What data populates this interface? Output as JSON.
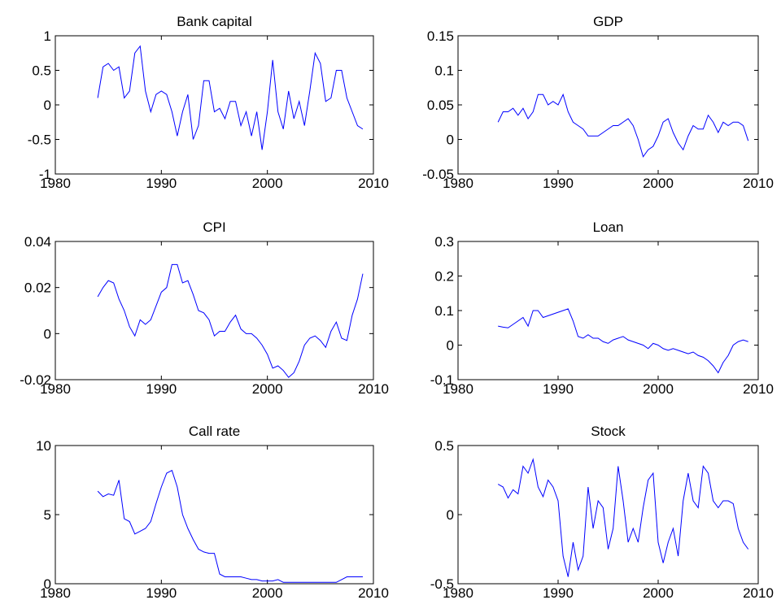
{
  "chart_data": [
    {
      "type": "line",
      "title": "Bank capital",
      "color": "#0000ff",
      "x": [
        1984,
        1984.5,
        1985,
        1985.5,
        1986,
        1986.5,
        1987,
        1987.5,
        1988,
        1988.5,
        1989,
        1989.5,
        1990,
        1990.5,
        1991,
        1991.5,
        1992,
        1992.5,
        1993,
        1993.5,
        1994,
        1994.5,
        1995,
        1995.5,
        1996,
        1996.5,
        1997,
        1997.5,
        1998,
        1998.5,
        1999,
        1999.5,
        2000,
        2000.5,
        2001,
        2001.5,
        2002,
        2002.5,
        2003,
        2003.5,
        2004,
        2004.5,
        2005,
        2005.5,
        2006,
        2006.5,
        2007,
        2007.5,
        2008,
        2008.5,
        2009
      ],
      "values": [
        0.1,
        0.55,
        0.6,
        0.5,
        0.55,
        0.1,
        0.2,
        0.75,
        0.85,
        0.2,
        -0.1,
        0.15,
        0.2,
        0.15,
        -0.1,
        -0.45,
        -0.1,
        0.15,
        -0.5,
        -0.3,
        0.35,
        0.35,
        -0.1,
        -0.05,
        -0.2,
        0.05,
        0.05,
        -0.3,
        -0.1,
        -0.45,
        -0.1,
        -0.65,
        -0.1,
        0.65,
        -0.1,
        -0.35,
        0.2,
        -0.2,
        0.05,
        -0.3,
        0.2,
        0.75,
        0.6,
        0.05,
        0.1,
        0.5,
        0.5,
        0.1,
        -0.1,
        -0.3,
        -0.35
      ],
      "xlim": [
        1980,
        2010
      ],
      "xticks": [
        1980,
        1990,
        2000,
        2010
      ],
      "ylim": [
        -1,
        1
      ],
      "yticks": [
        -1,
        -0.5,
        0,
        0.5,
        1
      ]
    },
    {
      "type": "line",
      "title": "GDP",
      "color": "#0000ff",
      "x": [
        1984,
        1984.5,
        1985,
        1985.5,
        1986,
        1986.5,
        1987,
        1987.5,
        1988,
        1988.5,
        1989,
        1989.5,
        1990,
        1990.5,
        1991,
        1991.5,
        1992,
        1992.5,
        1993,
        1993.5,
        1994,
        1994.5,
        1995,
        1995.5,
        1996,
        1996.5,
        1997,
        1997.5,
        1998,
        1998.5,
        1999,
        1999.5,
        2000,
        2000.5,
        2001,
        2001.5,
        2002,
        2002.5,
        2003,
        2003.5,
        2004,
        2004.5,
        2005,
        2005.5,
        2006,
        2006.5,
        2007,
        2007.5,
        2008,
        2008.5,
        2009
      ],
      "values": [
        0.025,
        0.04,
        0.04,
        0.045,
        0.035,
        0.045,
        0.03,
        0.04,
        0.065,
        0.065,
        0.05,
        0.055,
        0.05,
        0.065,
        0.04,
        0.025,
        0.02,
        0.015,
        0.005,
        0.005,
        0.005,
        0.01,
        0.015,
        0.02,
        0.02,
        0.025,
        0.03,
        0.02,
        0,
        -0.025,
        -0.015,
        -0.01,
        0.005,
        0.025,
        0.03,
        0.01,
        -0.005,
        -0.015,
        0.005,
        0.02,
        0.015,
        0.015,
        0.035,
        0.025,
        0.01,
        0.025,
        0.02,
        0.025,
        0.025,
        0.02,
        -0.002
      ],
      "xlim": [
        1980,
        2010
      ],
      "xticks": [
        1980,
        1990,
        2000,
        2010
      ],
      "ylim": [
        -0.05,
        0.15
      ],
      "yticks": [
        -0.05,
        0,
        0.05,
        0.1,
        0.15
      ]
    },
    {
      "type": "line",
      "title": "CPI",
      "color": "#0000ff",
      "x": [
        1984,
        1984.5,
        1985,
        1985.5,
        1986,
        1986.5,
        1987,
        1987.5,
        1988,
        1988.5,
        1989,
        1989.5,
        1990,
        1990.5,
        1991,
        1991.5,
        1992,
        1992.5,
        1993,
        1993.5,
        1994,
        1994.5,
        1995,
        1995.5,
        1996,
        1996.5,
        1997,
        1997.5,
        1998,
        1998.5,
        1999,
        1999.5,
        2000,
        2000.5,
        2001,
        2001.5,
        2002,
        2002.5,
        2003,
        2003.5,
        2004,
        2004.5,
        2005,
        2005.5,
        2006,
        2006.5,
        2007,
        2007.5,
        2008,
        2008.5,
        2009
      ],
      "values": [
        0.016,
        0.02,
        0.023,
        0.022,
        0.015,
        0.01,
        0.003,
        -0.001,
        0.006,
        0.004,
        0.006,
        0.012,
        0.018,
        0.02,
        0.03,
        0.03,
        0.022,
        0.023,
        0.017,
        0.01,
        0.009,
        0.006,
        -0.001,
        0.001,
        0.001,
        0.005,
        0.008,
        0.002,
        0,
        0,
        -0.002,
        -0.005,
        -0.009,
        -0.015,
        -0.014,
        -0.016,
        -0.019,
        -0.017,
        -0.012,
        -0.005,
        -0.002,
        -0.001,
        -0.003,
        -0.006,
        0.001,
        0.005,
        -0.002,
        -0.003,
        0.008,
        0.015,
        0.026
      ],
      "xlim": [
        1980,
        2010
      ],
      "xticks": [
        1980,
        1990,
        2000,
        2010
      ],
      "ylim": [
        -0.02,
        0.04
      ],
      "yticks": [
        -0.02,
        0,
        0.02,
        0.04
      ]
    },
    {
      "type": "line",
      "title": "Loan",
      "color": "#0000ff",
      "x": [
        1984,
        1984.5,
        1985,
        1985.5,
        1986,
        1986.5,
        1987,
        1987.5,
        1988,
        1988.5,
        1989,
        1989.5,
        1990,
        1990.5,
        1991,
        1991.5,
        1992,
        1992.5,
        1993,
        1993.5,
        1994,
        1994.5,
        1995,
        1995.5,
        1996,
        1996.5,
        1997,
        1997.5,
        1998,
        1998.5,
        1999,
        1999.5,
        2000,
        2000.5,
        2001,
        2001.5,
        2002,
        2002.5,
        2003,
        2003.5,
        2004,
        2004.5,
        2005,
        2005.5,
        2006,
        2006.5,
        2007,
        2007.5,
        2008,
        2008.5,
        2009
      ],
      "values": [
        0.055,
        0.052,
        0.05,
        0.06,
        0.07,
        0.08,
        0.055,
        0.1,
        0.1,
        0.08,
        0.085,
        0.09,
        0.095,
        0.1,
        0.105,
        0.07,
        0.025,
        0.02,
        0.03,
        0.02,
        0.02,
        0.01,
        0.005,
        0.015,
        0.02,
        0.025,
        0.015,
        0.01,
        0.005,
        0,
        -0.01,
        0.005,
        0,
        -0.01,
        -0.015,
        -0.01,
        -0.015,
        -0.02,
        -0.025,
        -0.02,
        -0.03,
        -0.035,
        -0.045,
        -0.06,
        -0.08,
        -0.05,
        -0.03,
        0,
        0.01,
        0.015,
        0.01
      ],
      "xlim": [
        1980,
        2010
      ],
      "xticks": [
        1980,
        1990,
        2000,
        2010
      ],
      "ylim": [
        -0.1,
        0.3
      ],
      "yticks": [
        -0.1,
        0,
        0.1,
        0.2,
        0.3
      ]
    },
    {
      "type": "line",
      "title": "Call rate",
      "color": "#0000ff",
      "x": [
        1984,
        1984.5,
        1985,
        1985.5,
        1986,
        1986.5,
        1987,
        1987.5,
        1988,
        1988.5,
        1989,
        1989.5,
        1990,
        1990.5,
        1991,
        1991.5,
        1992,
        1992.5,
        1993,
        1993.5,
        1994,
        1994.5,
        1995,
        1995.5,
        1996,
        1996.5,
        1997,
        1997.5,
        1998,
        1998.5,
        1999,
        1999.5,
        2000,
        2000.5,
        2001,
        2001.5,
        2002,
        2002.5,
        2003,
        2003.5,
        2004,
        2004.5,
        2005,
        2005.5,
        2006,
        2006.5,
        2007,
        2007.5,
        2008,
        2008.5,
        2009
      ],
      "values": [
        6.7,
        6.3,
        6.5,
        6.4,
        7.5,
        4.7,
        4.5,
        3.6,
        3.8,
        4.0,
        4.5,
        5.8,
        7.0,
        8.0,
        8.2,
        7.0,
        5.0,
        4.0,
        3.2,
        2.5,
        2.3,
        2.2,
        2.2,
        0.7,
        0.5,
        0.5,
        0.5,
        0.5,
        0.4,
        0.3,
        0.3,
        0.2,
        0.2,
        0.2,
        0.3,
        0.1,
        0.1,
        0.1,
        0.1,
        0.1,
        0.1,
        0.1,
        0.1,
        0.1,
        0.1,
        0.1,
        0.3,
        0.5,
        0.5,
        0.5,
        0.5
      ],
      "xlim": [
        1980,
        2010
      ],
      "xticks": [
        1980,
        1990,
        2000,
        2010
      ],
      "ylim": [
        0,
        10
      ],
      "yticks": [
        0,
        5,
        10
      ]
    },
    {
      "type": "line",
      "title": "Stock",
      "color": "#0000ff",
      "x": [
        1984,
        1984.5,
        1985,
        1985.5,
        1986,
        1986.5,
        1987,
        1987.5,
        1988,
        1988.5,
        1989,
        1989.5,
        1990,
        1990.5,
        1991,
        1991.5,
        1992,
        1992.5,
        1993,
        1993.5,
        1994,
        1994.5,
        1995,
        1995.5,
        1996,
        1996.5,
        1997,
        1997.5,
        1998,
        1998.5,
        1999,
        1999.5,
        2000,
        2000.5,
        2001,
        2001.5,
        2002,
        2002.5,
        2003,
        2003.5,
        2004,
        2004.5,
        2005,
        2005.5,
        2006,
        2006.5,
        2007,
        2007.5,
        2008,
        2008.5,
        2009
      ],
      "values": [
        0.22,
        0.2,
        0.12,
        0.18,
        0.15,
        0.35,
        0.3,
        0.4,
        0.2,
        0.13,
        0.25,
        0.2,
        0.1,
        -0.3,
        -0.45,
        -0.2,
        -0.4,
        -0.3,
        0.2,
        -0.1,
        0.1,
        0.05,
        -0.25,
        -0.1,
        0.35,
        0.1,
        -0.2,
        -0.1,
        -0.2,
        0.05,
        0.25,
        0.3,
        -0.2,
        -0.35,
        -0.2,
        -0.1,
        -0.3,
        0.1,
        0.3,
        0.1,
        0.05,
        0.35,
        0.3,
        0.1,
        0.05,
        0.1,
        0.1,
        0.08,
        -0.1,
        -0.2,
        -0.25
      ],
      "xlim": [
        1980,
        2010
      ],
      "xticks": [
        1980,
        1990,
        2000,
        2010
      ],
      "ylim": [
        -0.5,
        0.5
      ],
      "yticks": [
        -0.5,
        0,
        0.5
      ]
    }
  ]
}
